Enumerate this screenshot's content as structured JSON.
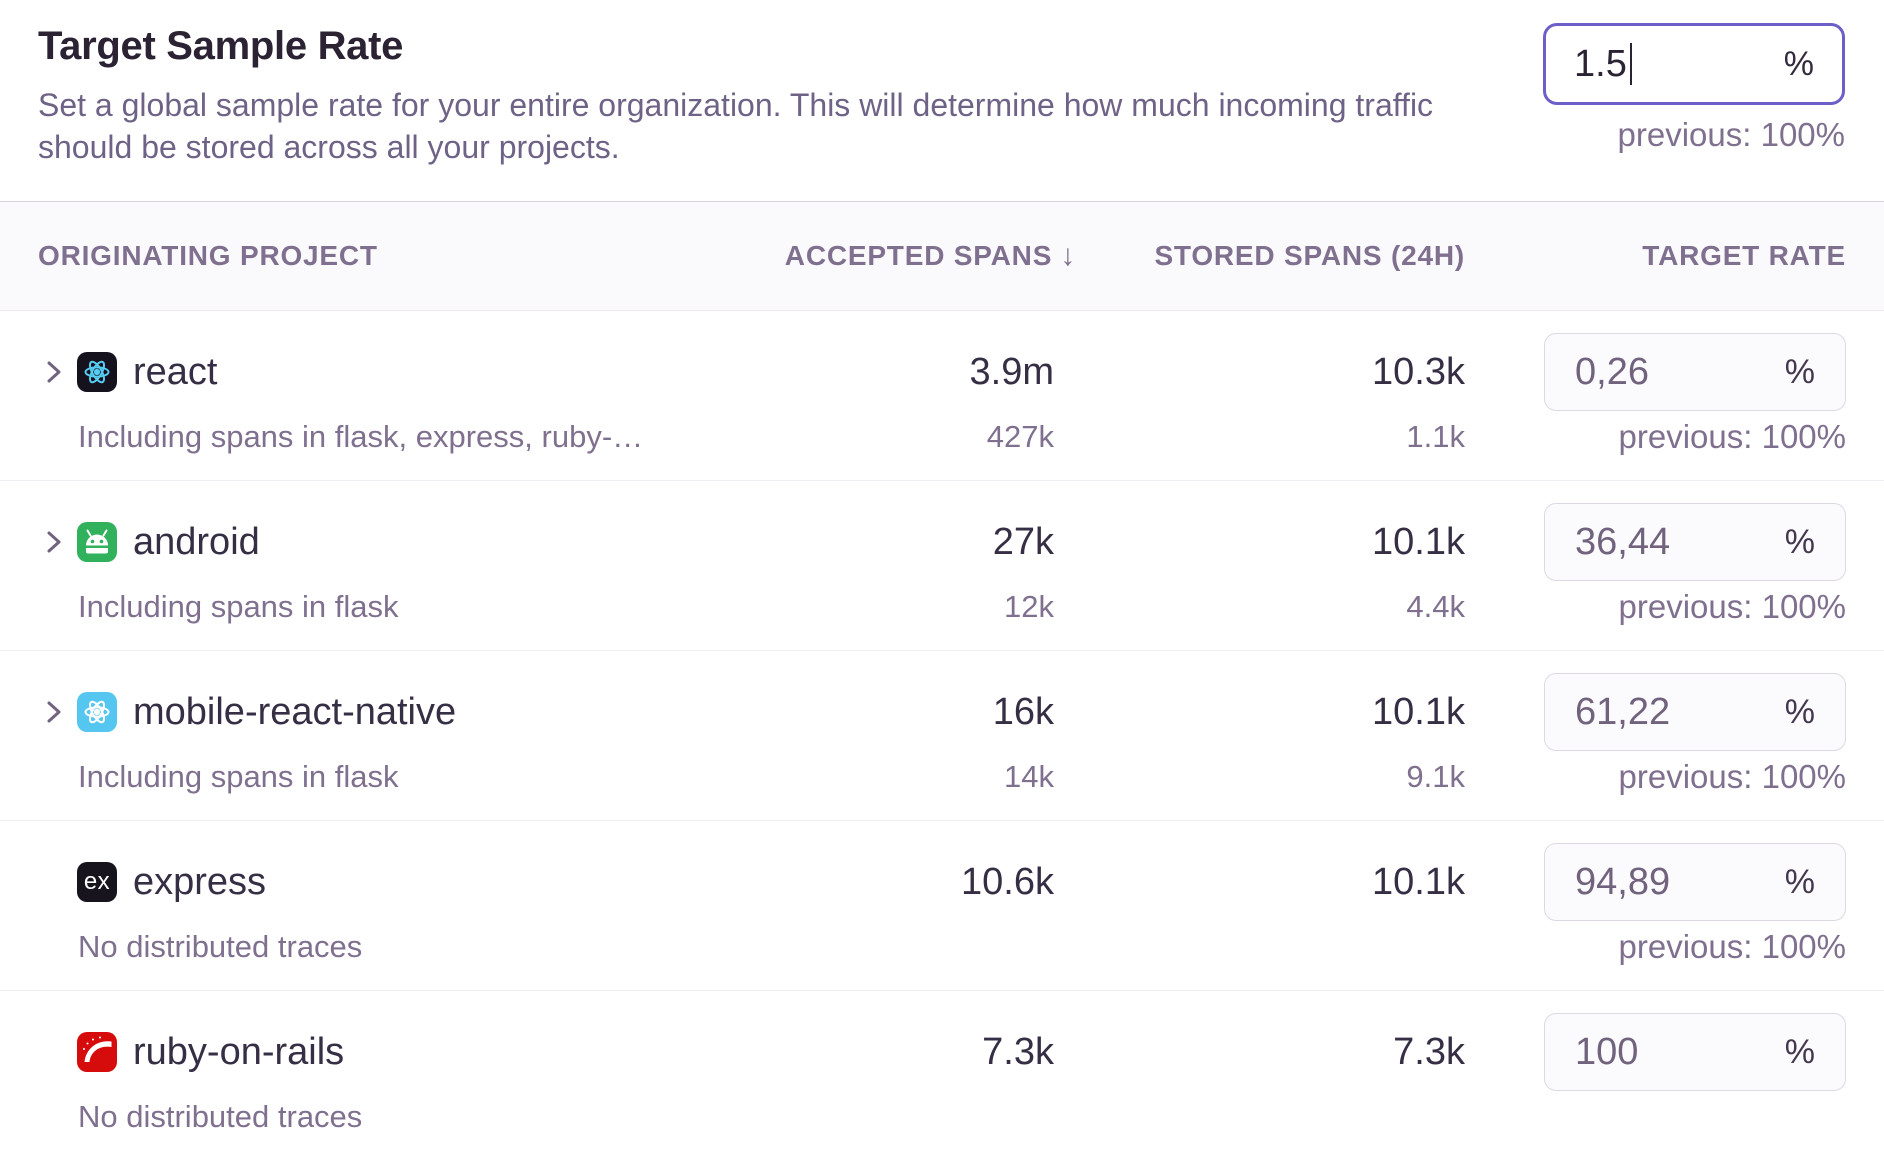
{
  "header": {
    "title": "Target Sample Rate",
    "description_line1": "Set a global sample rate for your entire organization. This will determine how much incoming traffic",
    "description_line2": "should be stored across all your projects.",
    "rate_input": {
      "value": "1.5",
      "unit": "%"
    },
    "previous": "previous: 100%"
  },
  "table": {
    "percent_sign": "%",
    "columns": {
      "project": "ORIGINATING PROJECT",
      "accepted": "ACCEPTED SPANS",
      "sort_arrow": "↓",
      "stored": "STORED SPANS (24H)",
      "target": "TARGET RATE"
    },
    "rows": [
      {
        "name": "react",
        "icon": "react-dark",
        "expandable": true,
        "subtext": "Including spans in flask, express, ruby-…",
        "accepted": "3.9m",
        "accepted_sub": "427k",
        "stored": "10.3k",
        "stored_sub": "1.1k",
        "rate": "0,26",
        "previous": "previous: 100%"
      },
      {
        "name": "android",
        "icon": "android",
        "expandable": true,
        "subtext": "Including spans in flask",
        "accepted": "27k",
        "accepted_sub": "12k",
        "stored": "10.1k",
        "stored_sub": "4.4k",
        "rate": "36,44",
        "previous": "previous: 100%"
      },
      {
        "name": "mobile-react-native",
        "icon": "react-light",
        "expandable": true,
        "subtext": "Including spans in flask",
        "accepted": "16k",
        "accepted_sub": "14k",
        "stored": "10.1k",
        "stored_sub": "9.1k",
        "rate": "61,22",
        "previous": "previous: 100%"
      },
      {
        "name": "express",
        "icon": "express",
        "expandable": false,
        "subtext": "No distributed traces",
        "accepted": "10.6k",
        "accepted_sub": "",
        "stored": "10.1k",
        "stored_sub": "",
        "rate": "94,89",
        "previous": "previous: 100%"
      },
      {
        "name": "ruby-on-rails",
        "icon": "rails",
        "expandable": false,
        "subtext": "No distributed traces",
        "accepted": "7.3k",
        "accepted_sub": "",
        "stored": "7.3k",
        "stored_sub": "",
        "rate": "100",
        "previous": ""
      }
    ]
  },
  "icons": {
    "express_badge_text": "ex"
  },
  "colors": {
    "accent_purple": "#6C5FC7",
    "text_dark": "#2B2233",
    "text_muted": "#80708F",
    "react_cyan": "#56CCF2",
    "android_green": "#31B15C",
    "react_native_blue": "#55C6F0",
    "rails_red": "#D60B0B",
    "express_black": "#17141D",
    "header_band_bg": "#FAF9FB"
  }
}
